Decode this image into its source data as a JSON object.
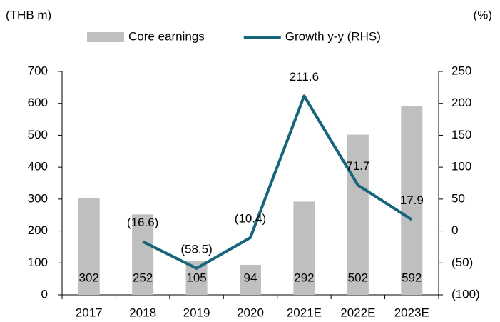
{
  "chart_data": {
    "type": "bar_line",
    "y_label": "(THB m)",
    "y2_label": "(%)",
    "categories": [
      "2017",
      "2018",
      "2019",
      "2020",
      "2021E",
      "2022E",
      "2023E"
    ],
    "series": [
      {
        "name": "Core earnings",
        "type": "bar",
        "color": "#bfbfbf",
        "values": [
          302,
          252,
          105,
          94,
          292,
          502,
          592
        ]
      },
      {
        "name": "Growth y-y (RHS)",
        "type": "line",
        "axis": "y2",
        "color": "#17657d",
        "values": [
          null,
          -16.6,
          -58.5,
          -10.4,
          211.6,
          71.7,
          17.9
        ],
        "value_labels": [
          null,
          "(16.6)",
          "(58.5)",
          "(10.4)",
          "211.6",
          "71.7",
          "17.9"
        ]
      }
    ],
    "ylim": [
      0,
      700
    ],
    "yticks": [
      0,
      100,
      200,
      300,
      400,
      500,
      600,
      700
    ],
    "y2lim": [
      -100,
      250
    ],
    "y2ticks": [
      {
        "value": -100,
        "label": "(100)"
      },
      {
        "value": -50,
        "label": "(50)"
      },
      0,
      50,
      100,
      150,
      200,
      250
    ],
    "legend": "top"
  }
}
